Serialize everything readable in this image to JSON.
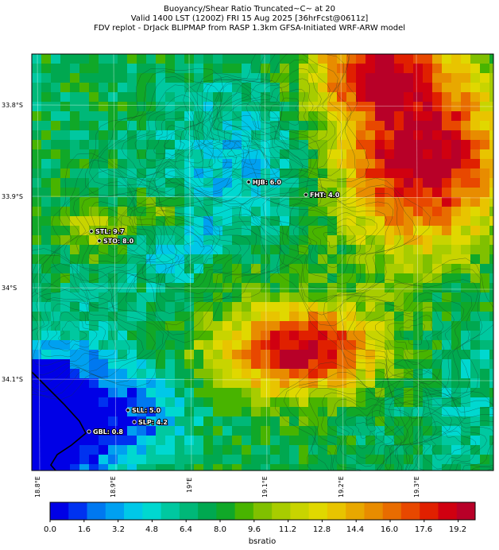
{
  "header": {
    "title_line1": "Buoyancy/Shear Ratio Truncated~C~    at 20",
    "title_line2": "Valid 1400 LST (1200Z) FRI 15 Aug 2025 [36hrFcst@0611z]",
    "title_line3": "FDV replot - DrJack BLIPMAP from RASP 1.3km GFSA-Initiated WRF-ARW model"
  },
  "axes": {
    "lat_labels": [
      "33.8°S",
      "33.9°S",
      "34°S",
      "34.1°S"
    ],
    "lon_labels": [
      "18.8°E",
      "18.9°E",
      "19°E",
      "19.1°E",
      "19.2°E",
      "19.3°E"
    ]
  },
  "stations": [
    {
      "id": "HJB",
      "label": "HJB: 6.0",
      "value": 6.0
    },
    {
      "id": "FHT",
      "label": "FHT: 4.0",
      "value": 4.0
    },
    {
      "id": "STL",
      "label": "STL: 9.7",
      "value": 9.7
    },
    {
      "id": "STO",
      "label": "STO: 8.0",
      "value": 8.0
    },
    {
      "id": "SLL",
      "label": "SLL: 5.0",
      "value": 5.0
    },
    {
      "id": "SLP",
      "label": "SLP: 4.2",
      "value": 4.2
    },
    {
      "id": "GBL",
      "label": "GBL: 0.8",
      "value": 0.8
    }
  ],
  "colorbar": {
    "title": "bsratio",
    "ticks": [
      "0.0",
      "1.6",
      "3.2",
      "4.8",
      "6.4",
      "8.0",
      "9.6",
      "11.2",
      "12.8",
      "14.4",
      "16.0",
      "17.6",
      "19.2"
    ],
    "min": 0,
    "max": 20,
    "colors": [
      "#0000e6",
      "#0032f0",
      "#0078f0",
      "#00a0f0",
      "#00c8e8",
      "#00d8d0",
      "#00c8a0",
      "#00b878",
      "#00a850",
      "#10a828",
      "#48b400",
      "#80c000",
      "#a8cc00",
      "#c8d400",
      "#e0d800",
      "#e8c400",
      "#e8a800",
      "#e88c00",
      "#e86c00",
      "#e84800",
      "#e02000",
      "#d00010",
      "#b80028"
    ]
  }
}
